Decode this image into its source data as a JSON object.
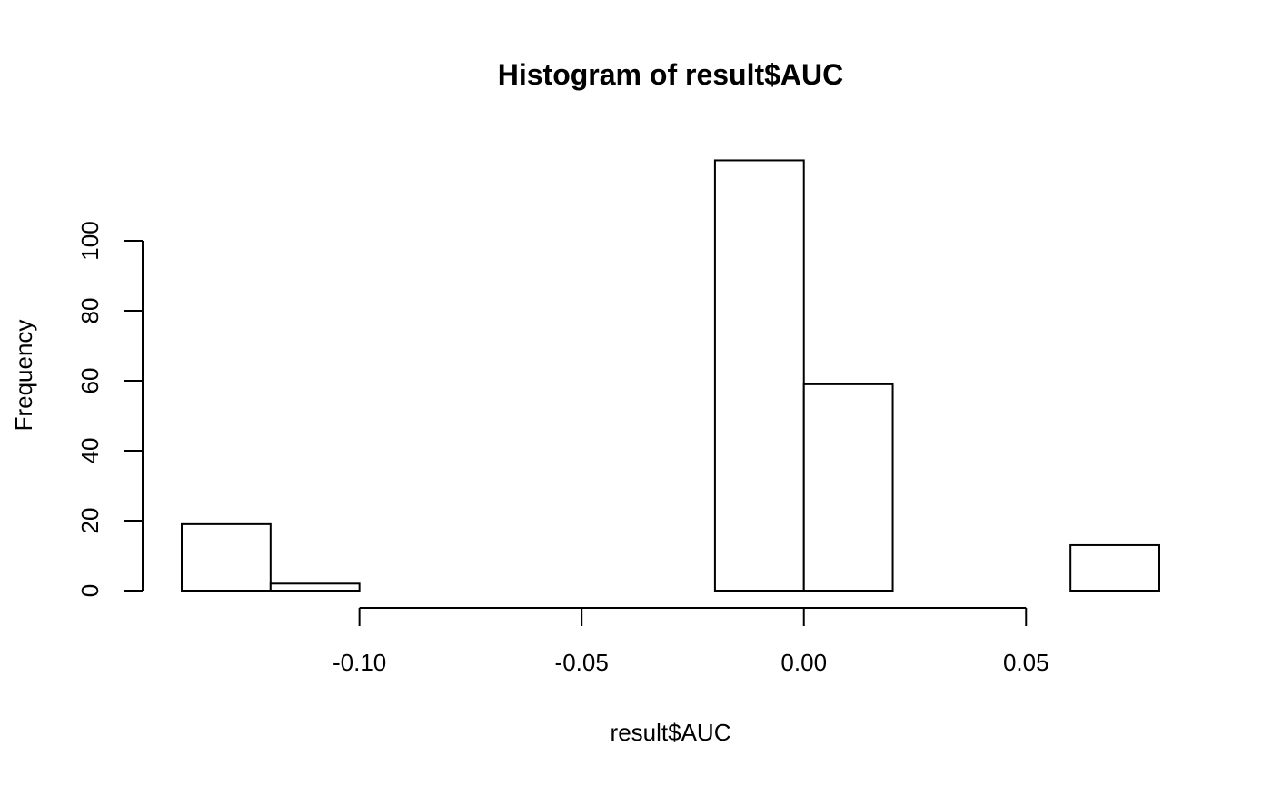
{
  "chart_data": {
    "type": "bar",
    "title": "Histogram of result$AUC",
    "xlabel": "result$AUC",
    "ylabel": "Frequency",
    "bin_edges": [
      -0.14,
      -0.12,
      -0.1,
      -0.08,
      -0.06,
      -0.04,
      -0.02,
      0.0,
      0.02,
      0.04,
      0.06,
      0.08
    ],
    "values": [
      19,
      2,
      0,
      0,
      0,
      0,
      123,
      59,
      0,
      0,
      13
    ],
    "xlim": [
      -0.14,
      0.08
    ],
    "ylim": [
      0,
      120
    ],
    "x_ticks": [
      -0.1,
      -0.05,
      0.0,
      0.05
    ],
    "x_tick_labels": [
      "-0.10",
      "-0.05",
      "0.00",
      "0.05"
    ],
    "y_ticks": [
      0,
      20,
      40,
      60,
      80,
      100
    ],
    "y_tick_labels": [
      "0",
      "20",
      "40",
      "60",
      "80",
      "100"
    ],
    "grid": false,
    "colors": {
      "bar_fill": "#ffffff",
      "bar_stroke": "#000000"
    }
  }
}
